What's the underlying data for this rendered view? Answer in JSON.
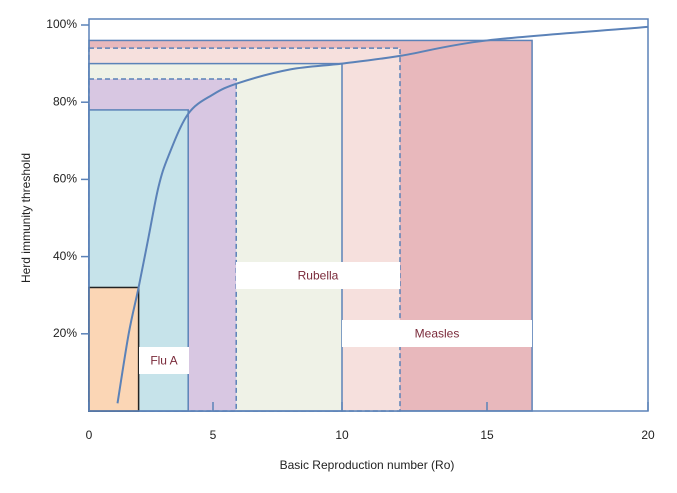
{
  "chart_data": {
    "type": "region",
    "xlabel": "Basic Reproduction number (Ro)",
    "ylabel": "Herd immunity threshold",
    "xlim": [
      0,
      20
    ],
    "xticks": [
      0,
      5,
      10,
      15,
      20
    ],
    "ylim": [
      0,
      100
    ],
    "yticks": [
      {
        "value": 20,
        "label": "20%"
      },
      {
        "value": 40,
        "label": "40%"
      },
      {
        "value": 60,
        "label": "60%"
      },
      {
        "value": 80,
        "label": "80%"
      },
      {
        "value": 100,
        "label": "100%"
      }
    ],
    "regions": [
      {
        "label": "Measles",
        "x": 16.4,
        "y": 96,
        "color": "#e8b8bc",
        "dashed": false
      },
      {
        "x": 12,
        "y": 94,
        "color": "#f6e0dd",
        "dashed": true
      },
      {
        "label": "Rubella",
        "x": 10,
        "y": 90,
        "color": "#eff2e7",
        "dashed": false
      },
      {
        "x": 5.9,
        "y": 86,
        "color": "#d8c7e2",
        "dashed": true
      },
      {
        "x": 4,
        "y": 78,
        "color": "#c6e3ea",
        "dashed": false
      },
      {
        "label": "Flu A",
        "x": 2,
        "y": 32,
        "color": "#fbd6b5",
        "dashed": false
      }
    ],
    "curve": {
      "color": "#5b82b8",
      "x": [
        1.15,
        1.6,
        2,
        2.4,
        2.8,
        3.2,
        4,
        5,
        6,
        8,
        10,
        12,
        15,
        20
      ],
      "y": [
        2,
        20,
        32,
        45,
        58,
        66,
        77,
        82,
        85,
        88.5,
        90,
        92,
        96,
        99.5
      ]
    }
  }
}
